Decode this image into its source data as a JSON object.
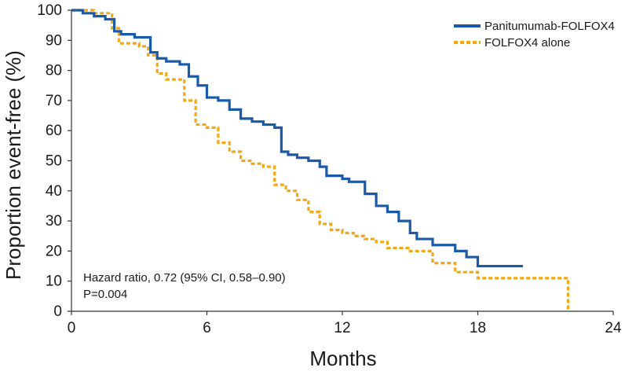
{
  "chart_data": {
    "type": "line",
    "subtype": "kaplan-meier step curve",
    "title": "",
    "xlabel": "Months",
    "ylabel": "Proportion event-free (%)",
    "xlim": [
      0,
      24
    ],
    "ylim": [
      0,
      100
    ],
    "xticks": [
      0,
      6,
      12,
      18,
      24
    ],
    "yticks": [
      0,
      10,
      20,
      30,
      40,
      50,
      60,
      70,
      80,
      90,
      100
    ],
    "grid": false,
    "legend_position": "top-right",
    "annotation": {
      "line1": "Hazard ratio, 0.72 (95% CI, 0.58–0.90)",
      "line2": "P=0.004"
    },
    "series": [
      {
        "name": "Panitumumab-FOLFOX4",
        "color": "#1a5aa6",
        "style": "solid",
        "x": [
          0,
          0.5,
          1.0,
          1.5,
          1.9,
          2.2,
          2.8,
          3.5,
          3.8,
          4.2,
          4.8,
          5.2,
          5.6,
          6.0,
          6.5,
          7.0,
          7.5,
          8.0,
          8.5,
          9.0,
          9.3,
          9.6,
          10.0,
          10.5,
          11.0,
          11.3,
          12.0,
          12.3,
          13.0,
          13.5,
          14.0,
          14.5,
          15.0,
          15.3,
          16.0,
          17.0,
          17.5,
          18.0,
          20.0
        ],
        "y": [
          100,
          99,
          98,
          97,
          93,
          92,
          91,
          86,
          84,
          83,
          82,
          78,
          75,
          71,
          70,
          67,
          64,
          63,
          62,
          61,
          53,
          52,
          51,
          50,
          48,
          45,
          44,
          43,
          39,
          35,
          33,
          30,
          26,
          24,
          22,
          20,
          18,
          15,
          15
        ]
      },
      {
        "name": "FOLFOX4 alone",
        "color": "#f0a818",
        "style": "dashed",
        "x": [
          0,
          1.0,
          1.8,
          2.1,
          3.0,
          3.4,
          3.8,
          4.2,
          5.0,
          5.5,
          6.0,
          6.5,
          7.0,
          7.5,
          8.0,
          8.5,
          9.0,
          9.5,
          10.0,
          10.5,
          11.0,
          11.5,
          12.0,
          12.5,
          13.0,
          13.5,
          14.0,
          15.0,
          16.0,
          17.0,
          18.0,
          20.0,
          22.0
        ],
        "y": [
          100,
          99,
          94,
          89,
          88,
          85,
          79,
          77,
          70,
          62,
          61,
          56,
          53,
          50,
          49,
          48,
          42,
          40,
          37,
          33,
          29,
          27,
          26,
          25,
          24,
          23,
          21,
          20,
          16,
          13,
          11,
          11,
          0
        ]
      }
    ]
  }
}
